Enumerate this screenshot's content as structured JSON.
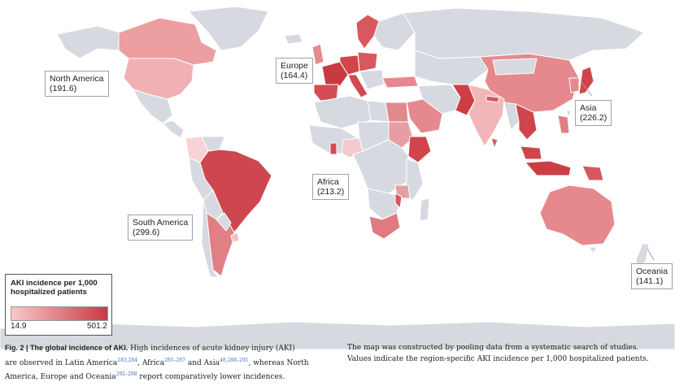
{
  "colors": {
    "ocean": "#ffffff",
    "land": "#d6d9e0",
    "border": "#ffffff",
    "scale_low": "#f7c9cb",
    "scale_high": "#c83a44"
  },
  "regions": [
    {
      "id": "north-america",
      "name": "North America",
      "value": "(191.6)"
    },
    {
      "id": "europe",
      "name": "Europe",
      "value": "(164.4)"
    },
    {
      "id": "asia",
      "name": "Asia",
      "value": "(226.2)"
    },
    {
      "id": "africa",
      "name": "Africa",
      "value": "(213.2)"
    },
    {
      "id": "south-america",
      "name": "South America",
      "value": "(299.6)"
    },
    {
      "id": "oceania",
      "name": "Oceania",
      "value": "(141.1)"
    }
  ],
  "legend": {
    "title": "AKI incidence per 1,000 hospitalized patients",
    "min": "14.9",
    "max": "501.2"
  },
  "caption": {
    "fig_label": "Fig. 2 | The global incidence of AKI.",
    "left_1": " High incidences of acute kidney injury (AKI)",
    "left_2a": "are observed in Latin America",
    "ref_a": "283,284",
    "left_2b": ", Africa",
    "ref_b": "285–287",
    "left_2c": " and Asia",
    "ref_c": "48,288–291",
    "left_2d": ", whereas North",
    "left_3a": "America, Europe and Oceania",
    "ref_d": "292–298",
    "left_3b": " report comparatively lower incidences.",
    "right_1": "The map was constructed by pooling data from a systematic search of studies.",
    "right_2": "Values indicate the region-specific AKI incidence per 1,000 hospitalized patients."
  }
}
